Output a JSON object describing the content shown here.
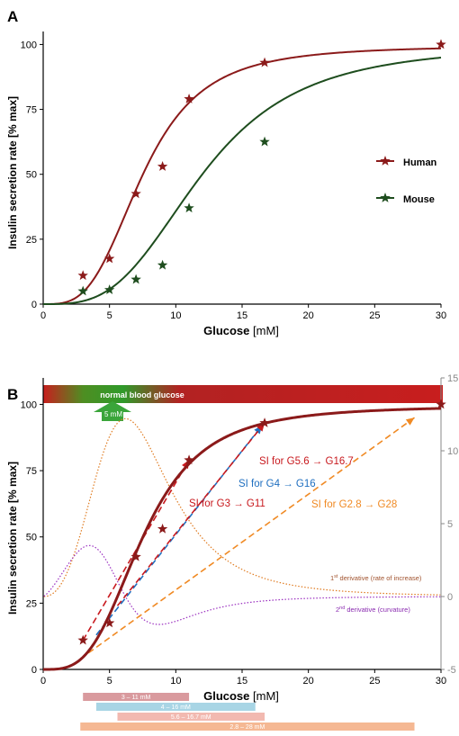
{
  "panelA": {
    "panel_label": "A",
    "chart_data": {
      "type": "scatter",
      "xlabel_bold": "Glucose",
      "xlabel_unit": "[mM]",
      "ylabel": "Insulin secretion rate [% max]",
      "xlim": [
        0,
        30
      ],
      "ylim": [
        0,
        105
      ],
      "xticks": [
        "0",
        "5",
        "10",
        "15",
        "20",
        "25",
        "30"
      ],
      "yticks": [
        "0",
        "25",
        "50",
        "75",
        "100"
      ],
      "legend_position": "right",
      "series": [
        {
          "name": "Human",
          "color": "#8B1A1A",
          "marker": "star",
          "points": [
            [
              3,
              11
            ],
            [
              5,
              17.5
            ],
            [
              7,
              42.5
            ],
            [
              9,
              53
            ],
            [
              11,
              79
            ],
            [
              16.7,
              93
            ],
            [
              30,
              100
            ]
          ],
          "fit": {
            "model": "hill",
            "max": 99.5,
            "ec50": 7.5,
            "n": 3.3
          }
        },
        {
          "name": "Mouse",
          "color": "#1E4D1E",
          "marker": "star",
          "points": [
            [
              3,
              5
            ],
            [
              5,
              5.5
            ],
            [
              7,
              9.5
            ],
            [
              9,
              15
            ],
            [
              11,
              37
            ],
            [
              16.7,
              62.5
            ]
          ],
          "fit": {
            "model": "hill",
            "max": 100,
            "ec50": 12,
            "n": 3.2
          }
        }
      ]
    }
  },
  "panelB": {
    "panel_label": "B",
    "chart_data": {
      "type": "line",
      "xlabel_bold": "Glucose",
      "xlabel_unit": "[mM]",
      "ylabel": "Insulin secretion rate [% max]",
      "xlim": [
        0,
        30
      ],
      "ylim": [
        0,
        110
      ],
      "xticks": [
        "0",
        "5",
        "10",
        "15",
        "20",
        "25",
        "30"
      ],
      "yticks": [
        "0",
        "25",
        "50",
        "75",
        "100"
      ],
      "y2lim": [
        -5,
        15
      ],
      "y2ticks": [
        "-5",
        "0",
        "5",
        "10",
        "15"
      ],
      "banner_label": "normal blood glucose",
      "arrow_label": "5 mM",
      "main_curve": {
        "color": "#8B1A1A",
        "model": "hill",
        "max": 99.5,
        "ec50": 7.5,
        "n": 3.3
      },
      "points": [
        [
          3,
          11
        ],
        [
          5,
          17.5
        ],
        [
          7,
          42.5
        ],
        [
          9,
          53
        ],
        [
          11,
          79
        ],
        [
          16.7,
          93
        ],
        [
          30,
          100
        ]
      ],
      "derivative_1": {
        "label": "1st derivative (rate of increase)",
        "color": "#E07B20",
        "peak_x": 6.5,
        "peak_y2": 12.2,
        "base_y2": 0
      },
      "derivative_2": {
        "label": "2nd derivative (curvature)",
        "color": "#9B30C0",
        "peak_x": 3.5,
        "peak_y2": 3.5,
        "trough_x": 9.5,
        "trough_y2": -2.1
      },
      "slope_lines": [
        {
          "label": "SI for G3 → G11",
          "color": "#C8191E",
          "from": [
            3,
            11
          ],
          "to": [
            11,
            79
          ]
        },
        {
          "label": "SI for G4 → G16",
          "color": "#1F6FC0",
          "from": [
            4,
            13
          ],
          "to": [
            16.5,
            92
          ]
        },
        {
          "label": "SI for G5.6 → G16.7",
          "color": "#C8191E",
          "from": [
            5.6,
            24
          ],
          "to": [
            16.7,
            93
          ]
        },
        {
          "label": "SI for G2.8 → G28",
          "color": "#F08A24",
          "from": [
            2.8,
            4
          ],
          "to": [
            28,
            95
          ]
        }
      ],
      "ranges": [
        {
          "label": "3 – 11 mM",
          "from": 3,
          "to": 11,
          "color": "#D99A9E"
        },
        {
          "label": "4 – 16 mM",
          "from": 4,
          "to": 16,
          "color": "#A8D5E5"
        },
        {
          "label": "5.6 – 16.7 mM",
          "from": 5.6,
          "to": 16.7,
          "color": "#F2B9B0"
        },
        {
          "label": "2.8 – 28 mM",
          "from": 2.8,
          "to": 28,
          "color": "#F5B893"
        }
      ]
    }
  },
  "text": {
    "a_label": "A",
    "b_label": "B",
    "legend_human": "Human",
    "legend_mouse": "Mouse",
    "banner": "normal blood glucose",
    "arrow": "5 mM",
    "si1": "SI for G3 → G11",
    "si2": "SI for G4 → G16",
    "si3": "SI for G5.6 → G16.7",
    "si4": "SI for G2.8 → G28",
    "d1_sup": "st",
    "d1_pre": "1",
    "d1_post": " derivative (rate of increase)",
    "d2_pre": "2",
    "d2_sup": "nd",
    "d2_post": " derivative (curvature)",
    "r1": "3 – 11 mM",
    "r2": "4 – 16 mM",
    "r3": "5.6 – 16.7 mM",
    "r4": "2.8 – 28 mM",
    "glucose": "Glucose",
    "mm": " [mM]",
    "ylabel": "Insulin secretion rate [% max]"
  }
}
